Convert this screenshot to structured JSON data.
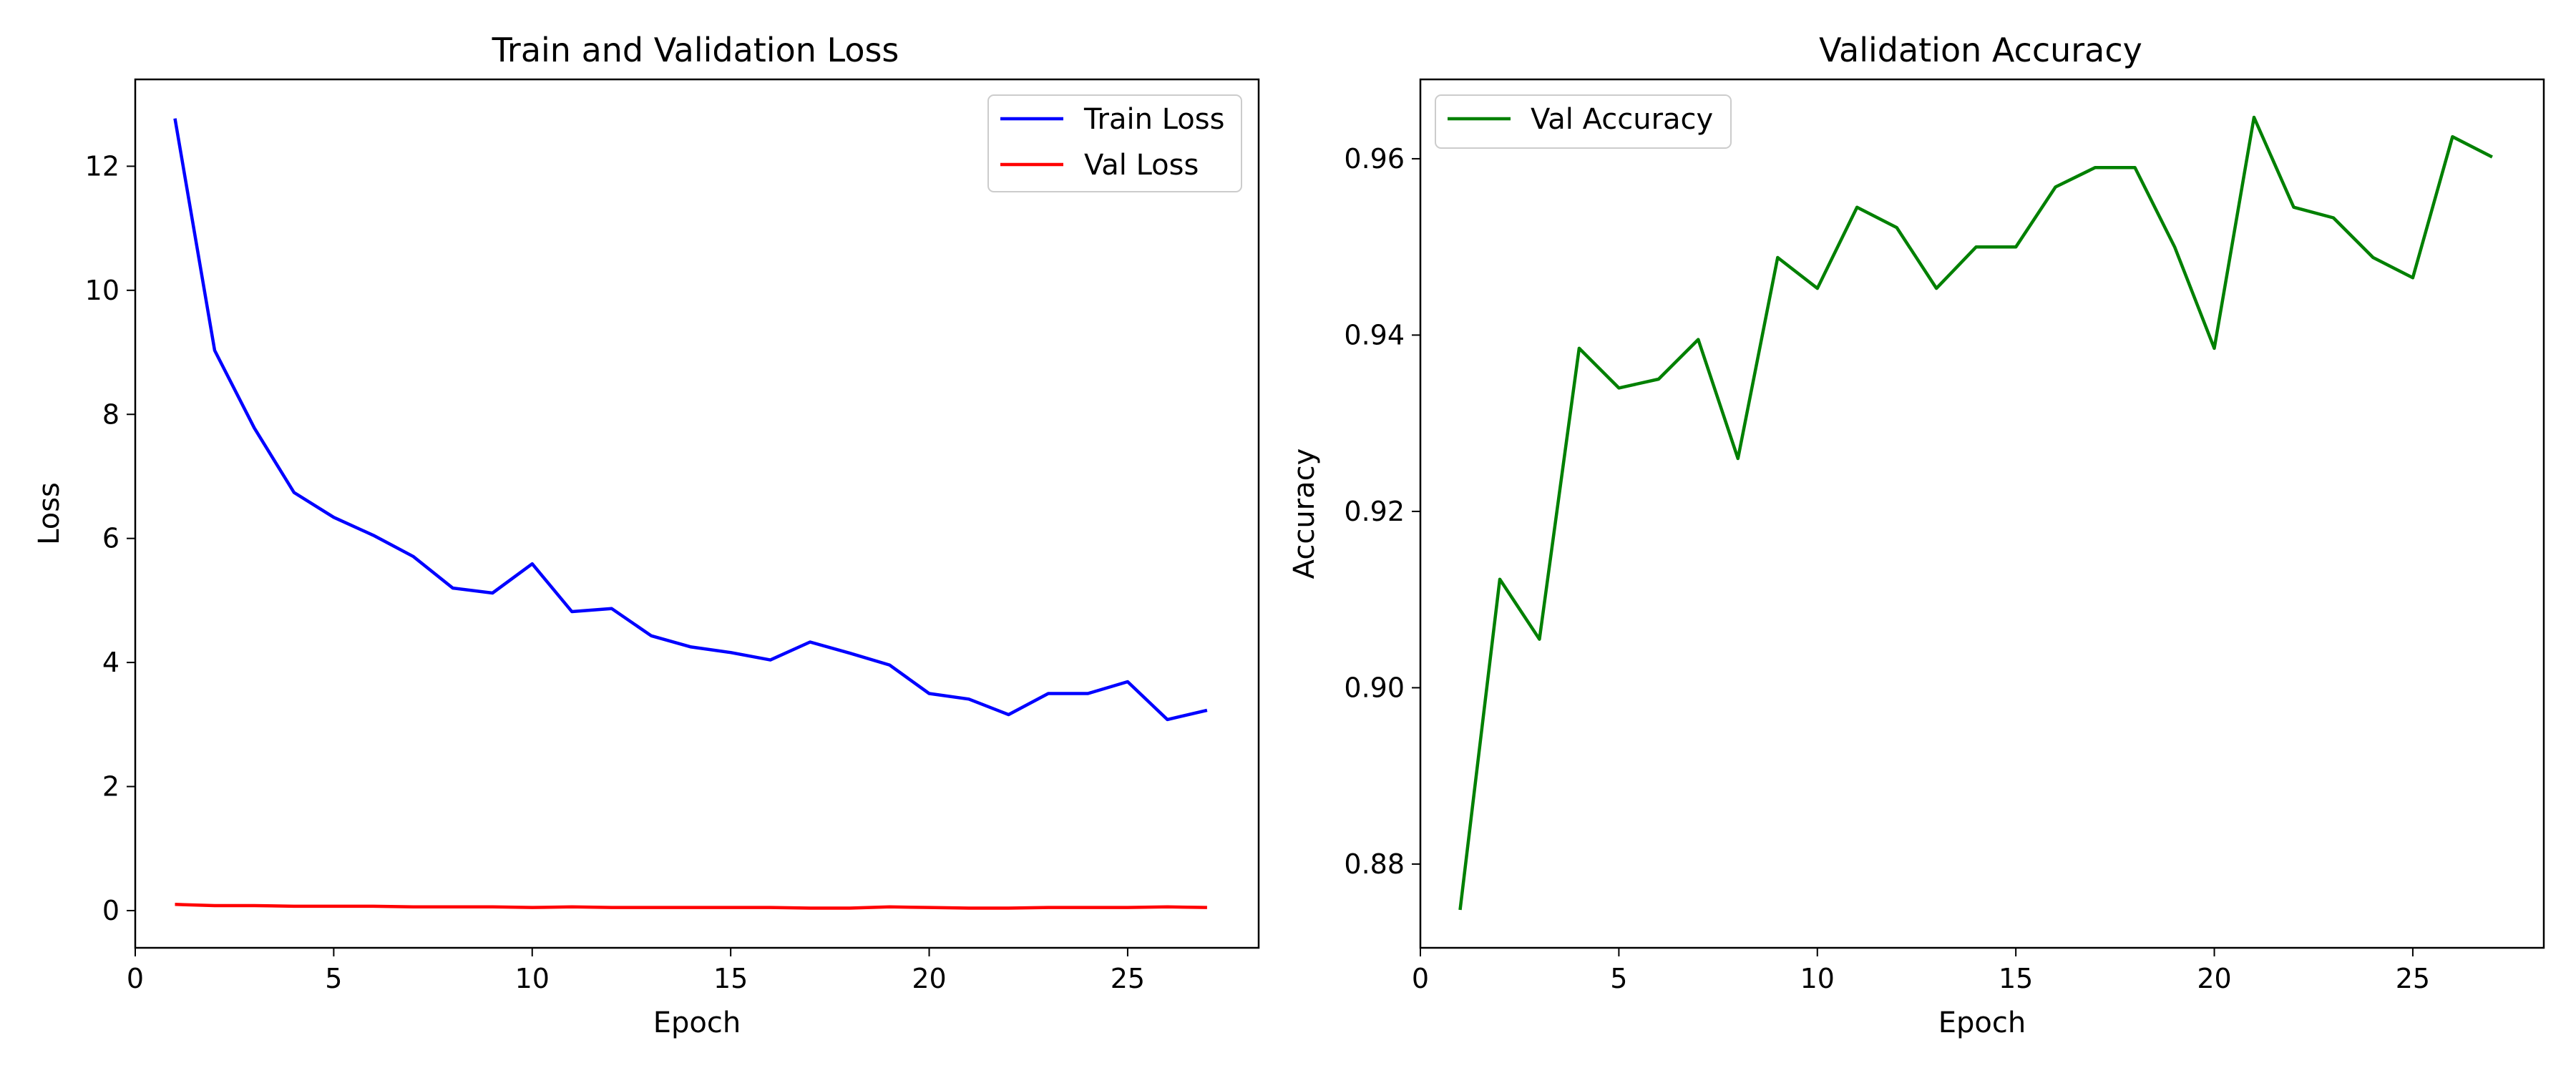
{
  "chart_data": [
    {
      "type": "line",
      "title": "Train and Validation Loss",
      "xlabel": "Epoch",
      "ylabel": "Loss",
      "xlim": [
        0,
        28.3
      ],
      "ylim": [
        -0.6,
        13.4
      ],
      "xticks": [
        0,
        5,
        10,
        15,
        20,
        25
      ],
      "yticks": [
        0,
        2,
        4,
        6,
        8,
        10,
        12
      ],
      "tick_decimals": 0,
      "grid": false,
      "legend_position": "top-right",
      "x": [
        1,
        2,
        3,
        4,
        5,
        6,
        7,
        8,
        9,
        10,
        11,
        12,
        13,
        14,
        15,
        16,
        17,
        18,
        19,
        20,
        21,
        22,
        23,
        24,
        25,
        26,
        27
      ],
      "series": [
        {
          "name": "Train Loss",
          "color": "#0000ff",
          "values": [
            12.77,
            9.03,
            7.78,
            6.74,
            6.34,
            6.05,
            5.71,
            5.2,
            5.12,
            5.59,
            4.82,
            4.87,
            4.43,
            4.25,
            4.16,
            4.04,
            4.33,
            4.15,
            3.96,
            3.5,
            3.41,
            3.16,
            3.5,
            3.5,
            3.69,
            3.08,
            3.23
          ]
        },
        {
          "name": "Val Loss",
          "color": "#ff0000",
          "values": [
            0.1,
            0.08,
            0.08,
            0.07,
            0.07,
            0.07,
            0.06,
            0.06,
            0.06,
            0.05,
            0.06,
            0.05,
            0.05,
            0.05,
            0.05,
            0.05,
            0.04,
            0.04,
            0.06,
            0.05,
            0.04,
            0.04,
            0.05,
            0.05,
            0.05,
            0.06,
            0.05
          ]
        }
      ]
    },
    {
      "type": "line",
      "title": "Validation Accuracy",
      "xlabel": "Epoch",
      "ylabel": "Accuracy",
      "xlim": [
        0,
        28.3
      ],
      "ylim": [
        0.8705,
        0.969
      ],
      "xticks": [
        0,
        5,
        10,
        15,
        20,
        25
      ],
      "yticks": [
        0.88,
        0.9,
        0.92,
        0.94,
        0.96
      ],
      "tick_decimals": 2,
      "grid": false,
      "legend_position": "top-left",
      "x": [
        1,
        2,
        3,
        4,
        5,
        6,
        7,
        8,
        9,
        10,
        11,
        12,
        13,
        14,
        15,
        16,
        17,
        18,
        19,
        20,
        21,
        22,
        23,
        24,
        25,
        26,
        27
      ],
      "series": [
        {
          "name": "Val Accuracy",
          "color": "#008000",
          "values": [
            0.8748,
            0.9123,
            0.9055,
            0.9385,
            0.934,
            0.935,
            0.9395,
            0.926,
            0.9488,
            0.9453,
            0.9545,
            0.9522,
            0.9453,
            0.95,
            0.95,
            0.9568,
            0.959,
            0.959,
            0.95,
            0.9385,
            0.9647,
            0.9545,
            0.9533,
            0.9488,
            0.9465,
            0.9625,
            0.9602
          ]
        }
      ]
    }
  ]
}
